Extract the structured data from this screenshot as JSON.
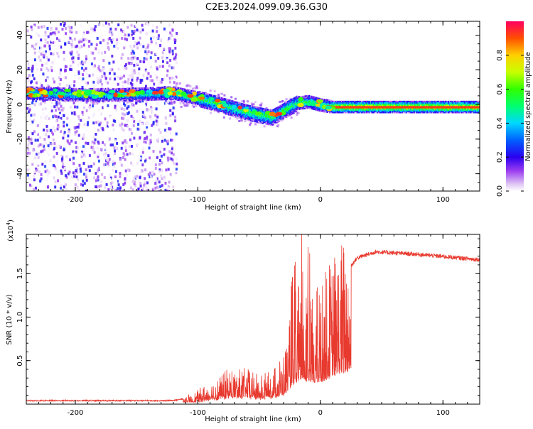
{
  "title": "C2E3.2024.099.09.36.G30",
  "chart_data": [
    {
      "type": "heatmap",
      "xlabel": "Height of straight line (km)",
      "ylabel": "Frequency (Hz)",
      "xlim": [
        -240,
        130
      ],
      "ylim": [
        -50,
        48
      ],
      "xticks": [
        -200,
        -100,
        0,
        100
      ],
      "yticks": [
        -40,
        -20,
        0,
        20,
        40
      ],
      "colorbar": {
        "label": "Normalized spectral amplitude",
        "range": [
          0,
          1
        ],
        "ticks": [
          0.0,
          0.2,
          0.4,
          0.6,
          0.8
        ]
      },
      "ridge": [
        {
          "x": -240,
          "y": 7
        },
        {
          "x": -200,
          "y": 6
        },
        {
          "x": -160,
          "y": 6
        },
        {
          "x": -120,
          "y": 7
        },
        {
          "x": -100,
          "y": 4
        },
        {
          "x": -80,
          "y": 0
        },
        {
          "x": -60,
          "y": -4
        },
        {
          "x": -40,
          "y": -7
        },
        {
          "x": -30,
          "y": -3
        },
        {
          "x": -20,
          "y": 1
        },
        {
          "x": -10,
          "y": 2
        },
        {
          "x": 0,
          "y": 0
        },
        {
          "x": 10,
          "y": -1
        },
        {
          "x": 130,
          "y": -1
        }
      ]
    },
    {
      "type": "line",
      "xlabel": "Height of straight line (km)",
      "ylabel": "SNR (10 * v/v)",
      "multiplier": "(x10",
      "multiplier_exp": "4",
      "multiplier_close": ")",
      "xlim": [
        -240,
        130
      ],
      "ylim": [
        0,
        1.95
      ],
      "xticks": [
        -200,
        -100,
        0,
        100
      ],
      "yticks": [
        0.5,
        1.0,
        1.5
      ],
      "ytick_labels": [
        "0.5",
        "1.0",
        "1.5"
      ],
      "series_color": "#e8392e",
      "envelope": [
        {
          "x": -240,
          "y": 0.04
        },
        {
          "x": -120,
          "y": 0.04
        },
        {
          "x": -105,
          "y": 0.08
        },
        {
          "x": -90,
          "y": 0.2
        },
        {
          "x": -75,
          "y": 0.3
        },
        {
          "x": -60,
          "y": 0.32
        },
        {
          "x": -50,
          "y": 0.25
        },
        {
          "x": -40,
          "y": 0.3
        },
        {
          "x": -30,
          "y": 0.45
        },
        {
          "x": -22,
          "y": 0.9
        },
        {
          "x": -15,
          "y": 1.2
        },
        {
          "x": -8,
          "y": 1.0
        },
        {
          "x": 0,
          "y": 1.05
        },
        {
          "x": 10,
          "y": 1.3
        },
        {
          "x": 20,
          "y": 1.5
        },
        {
          "x": 30,
          "y": 1.68
        },
        {
          "x": 45,
          "y": 1.75
        },
        {
          "x": 80,
          "y": 1.72
        },
        {
          "x": 130,
          "y": 1.66
        }
      ]
    }
  ]
}
